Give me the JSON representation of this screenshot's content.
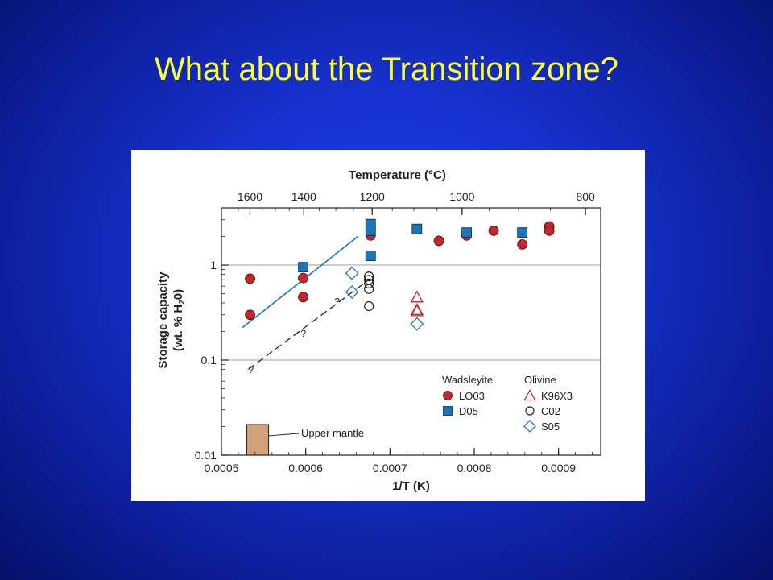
{
  "slide": {
    "title": "What about the Transition zone?",
    "background_color": "#1733d2",
    "title_color": "#ffff33"
  },
  "chart_data": {
    "type": "scatter",
    "xlabel": "1/T (K)",
    "ylabel_line1": "Storage capacity",
    "ylabel_line2": "(wt. % H",
    "ylabel_sub": "2",
    "ylabel_end": "0)",
    "top_axis_label": "Temperature (°C)",
    "xlim": [
      0.0005,
      0.00095
    ],
    "ylim": [
      0.01,
      4
    ],
    "y_scale": "log",
    "x_ticks": [
      {
        "value": 0.0005,
        "label": "0.0005"
      },
      {
        "value": 0.0006,
        "label": "0.0006"
      },
      {
        "value": 0.0007,
        "label": "0.0007"
      },
      {
        "value": 0.0008,
        "label": "0.0008"
      },
      {
        "value": 0.0009,
        "label": "0.0009"
      }
    ],
    "y_ticks": [
      {
        "value": 0.01,
        "label": "0.01"
      },
      {
        "value": 0.1,
        "label": "0.1"
      },
      {
        "value": 1,
        "label": "1"
      }
    ],
    "top_ticks": [
      {
        "value": 1600,
        "label": "1600"
      },
      {
        "value": 1400,
        "label": "1400"
      },
      {
        "value": 1200,
        "label": "1200"
      },
      {
        "value": 1000,
        "label": "1000"
      },
      {
        "value": 800,
        "label": "800"
      }
    ],
    "grid": "horizontal at 0.1 and 1",
    "series": [
      {
        "name": "LO03",
        "group": "Wadsleyite",
        "marker": "circle-filled",
        "color": "#c1272d",
        "points": [
          [
            0.000534,
            0.72
          ],
          [
            0.000534,
            0.3
          ],
          [
            0.000597,
            0.73
          ],
          [
            0.000597,
            0.46
          ],
          [
            0.000677,
            2.05
          ],
          [
            0.000758,
            1.8
          ],
          [
            0.000791,
            2.05
          ],
          [
            0.000823,
            2.3
          ],
          [
            0.000857,
            1.65
          ],
          [
            0.000889,
            2.55
          ],
          [
            0.000889,
            2.3
          ]
        ]
      },
      {
        "name": "D05",
        "group": "Wadsleyite",
        "marker": "square-filled",
        "color": "#1c75bc",
        "points": [
          [
            0.000597,
            0.95
          ],
          [
            0.000677,
            2.7
          ],
          [
            0.000677,
            2.3
          ],
          [
            0.000677,
            1.25
          ],
          [
            0.000732,
            2.4
          ],
          [
            0.000791,
            2.2
          ],
          [
            0.000857,
            2.2
          ]
        ]
      },
      {
        "name": "K96X3",
        "group": "Olivine",
        "marker": "triangle-open",
        "color": "#c1272d",
        "points": [
          [
            0.000732,
            0.46
          ],
          [
            0.000732,
            0.33
          ],
          [
            0.000732,
            0.34
          ]
        ]
      },
      {
        "name": "C02",
        "group": "Olivine",
        "marker": "circle-open",
        "color": "#231f20",
        "points": [
          [
            0.000675,
            0.76
          ],
          [
            0.000675,
            0.7
          ],
          [
            0.000675,
            0.64
          ],
          [
            0.000675,
            0.56
          ],
          [
            0.000675,
            0.37
          ]
        ]
      },
      {
        "name": "S05",
        "group": "Olivine",
        "marker": "diamond-open",
        "color": "#1c75bc",
        "points": [
          [
            0.000655,
            0.82
          ],
          [
            0.000655,
            0.52
          ],
          [
            0.000732,
            0.24
          ]
        ]
      }
    ],
    "fit_line": {
      "color": "#1c75bc",
      "points": [
        [
          0.000525,
          0.22
        ],
        [
          0.000662,
          2.0
        ]
      ]
    },
    "dashed_line": {
      "color": "#231f20",
      "points": [
        [
          0.000532,
          0.08
        ],
        [
          0.000673,
          0.68
        ]
      ]
    },
    "question_marks": [
      {
        "x": 0.000532,
        "y": 0.073,
        "text": "?"
      },
      {
        "x": 0.000594,
        "y": 0.177,
        "text": "?"
      },
      {
        "x": 0.000634,
        "y": 0.38,
        "text": "?"
      }
    ],
    "upper_mantle_box": {
      "x": [
        0.00053,
        0.000556
      ],
      "y": [
        0.01,
        0.021
      ],
      "color": "#d4a27a",
      "label": "Upper mantle"
    },
    "legend": {
      "placement": "bottom-right",
      "groups": [
        {
          "title": "Wadsleyite",
          "entries": [
            "LO03",
            "D05"
          ]
        },
        {
          "title": "Olivine",
          "entries": [
            "K96X3",
            "C02",
            "S05"
          ]
        }
      ]
    }
  }
}
